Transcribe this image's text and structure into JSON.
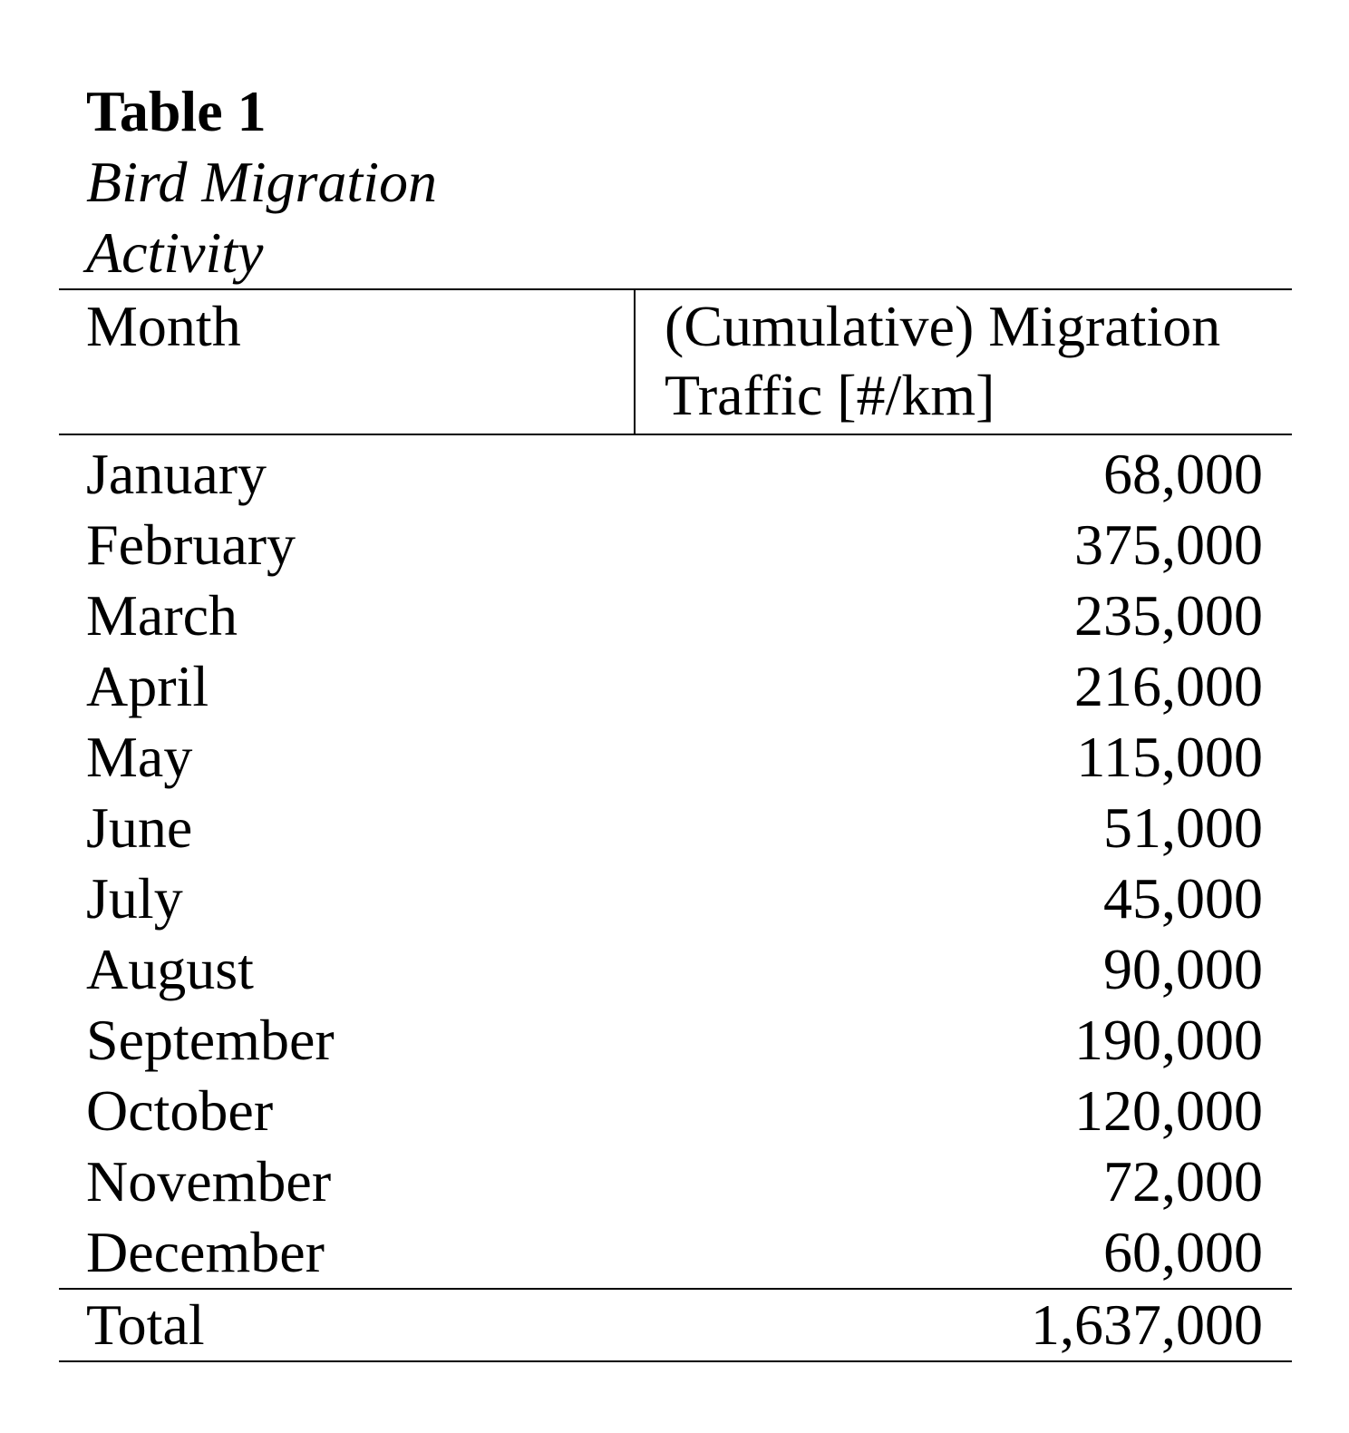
{
  "caption": {
    "label": "Table 1",
    "title": "Bird Migration Activity"
  },
  "headers": {
    "month": "Month",
    "traffic": "(Cumulative) Migration Traffic [#/km]"
  },
  "rows": [
    {
      "month": "January",
      "value": "68,000"
    },
    {
      "month": "February",
      "value": "375,000"
    },
    {
      "month": "March",
      "value": "235,000"
    },
    {
      "month": "April",
      "value": "216,000"
    },
    {
      "month": "May",
      "value": "115,000"
    },
    {
      "month": "June",
      "value": "51,000"
    },
    {
      "month": "July",
      "value": "45,000"
    },
    {
      "month": "August",
      "value": "90,000"
    },
    {
      "month": "September",
      "value": "190,000"
    },
    {
      "month": "October",
      "value": "120,000"
    },
    {
      "month": "November",
      "value": "72,000"
    },
    {
      "month": "December",
      "value": "60,000"
    }
  ],
  "total": {
    "label": "Total",
    "value": "1,637,000"
  }
}
